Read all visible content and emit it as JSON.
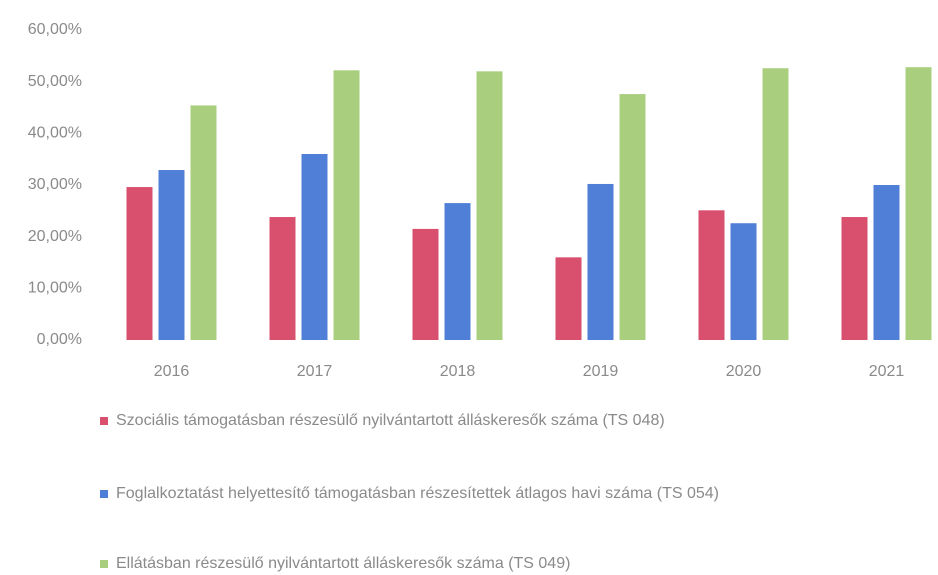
{
  "chart_data": {
    "type": "bar",
    "categories": [
      "2016",
      "2017",
      "2018",
      "2019",
      "2020",
      "2021"
    ],
    "series": [
      {
        "name": "Szociális támogatásban részesülő nyilvántartott álláskeresők száma (TS 048)",
        "color": "#d94f6e",
        "values": [
          29.6,
          23.8,
          21.5,
          16,
          25.1,
          23.8
        ]
      },
      {
        "name": "Foglalkoztatást helyettesítő támogatásban részesítettek átlagos havi száma (TS 054)",
        "color": "#4f7fd6",
        "values": [
          32.9,
          36,
          26.5,
          30.2,
          22.6,
          30
        ]
      },
      {
        "name": "Ellátásban részesülő nyilvántartott álláskeresők száma (TS 049)",
        "color": "#a9cf7e",
        "values": [
          45.4,
          52.2,
          52,
          47.6,
          52.6,
          52.8
        ]
      }
    ],
    "ylim": [
      0,
      60
    ],
    "yticks": [
      {
        "value": 0,
        "label": "0,00%"
      },
      {
        "value": 10,
        "label": "10,00%"
      },
      {
        "value": 20,
        "label": "20,00%"
      },
      {
        "value": 30,
        "label": "30,00%"
      },
      {
        "value": 40,
        "label": "40,00%"
      },
      {
        "value": 50,
        "label": "50,00%"
      },
      {
        "value": 60,
        "label": "60,00%"
      }
    ],
    "grid": false,
    "legend": "bottom"
  }
}
